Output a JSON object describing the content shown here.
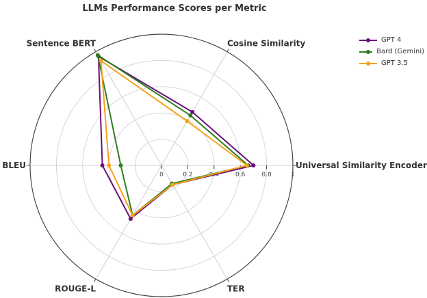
{
  "chart_data": {
    "type": "radar",
    "title": "LLMs Performance Scores per Metric",
    "axes": [
      "Universal Similarity Encoder",
      "Cosine Similarity",
      "Sentence BERT",
      "BLEU",
      "ROUGE-L",
      "TER"
    ],
    "radial_ticks": [
      "0",
      "0.2",
      "0.4",
      "0.6",
      "0.8",
      "1"
    ],
    "radial_range": [
      0,
      1
    ],
    "series": [
      {
        "name": "GPT 4",
        "color": "#6a0f7a",
        "values": [
          0.7,
          0.47,
          0.96,
          0.45,
          0.47,
          0.17
        ]
      },
      {
        "name": "Bard (Gemini)",
        "color": "#2e7d1f",
        "values": [
          0.66,
          0.44,
          0.97,
          0.31,
          0.44,
          0.16
        ]
      },
      {
        "name": "GPT 3.5",
        "color": "#f5a21b",
        "values": [
          0.65,
          0.39,
          0.92,
          0.4,
          0.44,
          0.17
        ]
      }
    ],
    "legend_position": "top-right",
    "grid": true
  }
}
